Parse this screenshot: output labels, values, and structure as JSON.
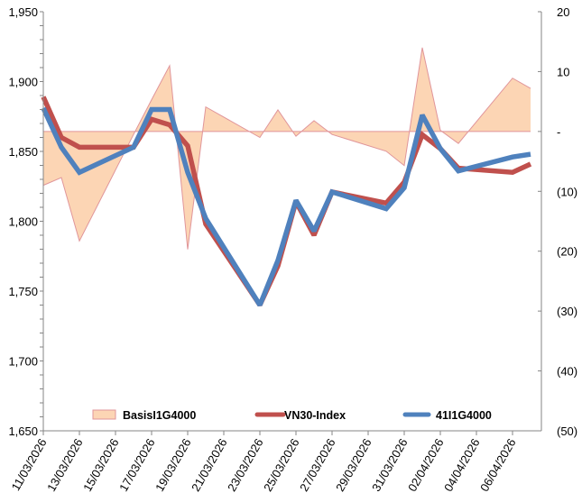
{
  "chart_data": {
    "type": "line",
    "title": "",
    "xlabel": "",
    "ylabel": "",
    "y2label": "",
    "dates": [
      "11/03/2026",
      "12/03/2026",
      "13/03/2026",
      "16/03/2026",
      "17/03/2026",
      "18/03/2026",
      "19/03/2026",
      "20/03/2026",
      "23/03/2026",
      "24/03/2026",
      "25/03/2026",
      "26/03/2026",
      "27/03/2026",
      "30/03/2026",
      "31/03/2026",
      "01/04/2026",
      "02/04/2026",
      "03/04/2026",
      "06/04/2026",
      "07/04/2026"
    ],
    "x_tick_labels": [
      "11/03/2026",
      "13/03/2026",
      "15/03/2026",
      "17/03/2026",
      "19/03/2026",
      "21/03/2026",
      "23/03/2026",
      "25/03/2026",
      "27/03/2026",
      "29/03/2026",
      "31/03/2026",
      "02/04/2026",
      "04/04/2026",
      "06/04/2026"
    ],
    "x_range": [
      "11/03/2026",
      "07/04/2026"
    ],
    "ylim": [
      1650,
      1950
    ],
    "y_ticks": [
      1650,
      1700,
      1750,
      1800,
      1850,
      1900,
      1950
    ],
    "y_tick_labels": [
      "1,650",
      "1,700",
      "1,750",
      "1,800",
      "1,850",
      "1,900",
      "1,950"
    ],
    "y2lim": [
      -50,
      20
    ],
    "y2_ticks": [
      -50,
      -40,
      -30,
      -20,
      -10,
      0,
      10,
      20
    ],
    "y2_tick_labels": [
      "(50)",
      "(40)",
      "(30)",
      "(20)",
      "(10)",
      "-",
      "10",
      "20"
    ],
    "grid": false,
    "legend_position": "bottom-inside",
    "series": [
      {
        "name": "BasisI1G4000",
        "type": "area",
        "axis": "right",
        "color": "#fcd5b4",
        "edge_color": "#e0959a",
        "values": [
          -9.0,
          -7.7,
          -18.3,
          -0.5,
          5.3,
          11.0,
          -19.7,
          4.1,
          -1.0,
          3.6,
          -0.8,
          1.8,
          -0.5,
          -3.3,
          -5.7,
          14.0,
          0.2,
          -2.0,
          8.9,
          7.2
        ]
      },
      {
        "name": "VN30-Index",
        "type": "line",
        "axis": "left",
        "color": "#c0504d",
        "values": [
          1889,
          1860,
          1853,
          1853,
          1873,
          1869,
          1854,
          1798,
          1740,
          1768,
          1814,
          1790,
          1821,
          1813,
          1828,
          1862,
          1852,
          1838,
          1835,
          1841
        ]
      },
      {
        "name": "41I1G4000",
        "type": "line",
        "axis": "left",
        "color": "#4f81bd",
        "values": [
          1881,
          1853,
          1835,
          1853,
          1880,
          1880,
          1835,
          1802,
          1740,
          1772,
          1815,
          1793,
          1821,
          1809,
          1824,
          1876,
          1852,
          1836,
          1846,
          1848
        ]
      }
    ]
  }
}
